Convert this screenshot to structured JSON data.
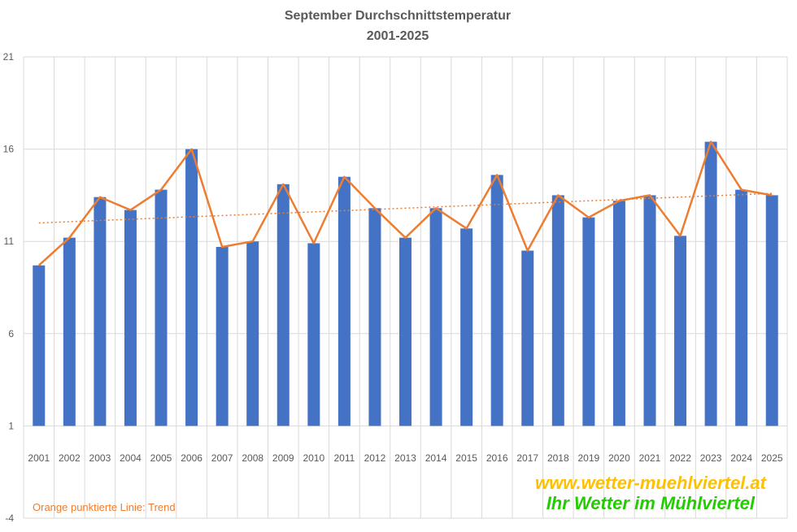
{
  "chart_data": {
    "type": "bar",
    "title": "September Durchschnittstemperatur",
    "subtitle": "2001-2025",
    "xlabel": "",
    "ylabel": "",
    "categories": [
      "2001",
      "2002",
      "2003",
      "2004",
      "2005",
      "2006",
      "2007",
      "2008",
      "2009",
      "2010",
      "2011",
      "2012",
      "2013",
      "2014",
      "2015",
      "2016",
      "2017",
      "2018",
      "2019",
      "2020",
      "2021",
      "2022",
      "2023",
      "2024",
      "2025"
    ],
    "series": [
      {
        "values": [
          9.7,
          11.2,
          13.4,
          12.7,
          13.8,
          16.0,
          10.7,
          11.0,
          14.1,
          10.9,
          14.5,
          12.8,
          11.2,
          12.8,
          11.7,
          14.6,
          10.5,
          13.5,
          12.3,
          13.2,
          13.5,
          11.3,
          16.4,
          13.8,
          13.5
        ]
      }
    ],
    "trend": {
      "start": 12.0,
      "end": 13.6
    },
    "ylim": [
      -4,
      21
    ],
    "yticks": [
      -4,
      1,
      6,
      11,
      16,
      21
    ],
    "grid": true,
    "colors": {
      "bar": "#4472C4",
      "line": "#ED7D31",
      "trend": "#ED7D31",
      "grid": "#D9D9D9",
      "text": "#595959"
    },
    "note": "Orange punktierte Linie: Trend",
    "watermark": {
      "url": "www.wetter-muehlviertel.at",
      "slogan": "Ihr Wetter im Mühlviertel"
    }
  }
}
